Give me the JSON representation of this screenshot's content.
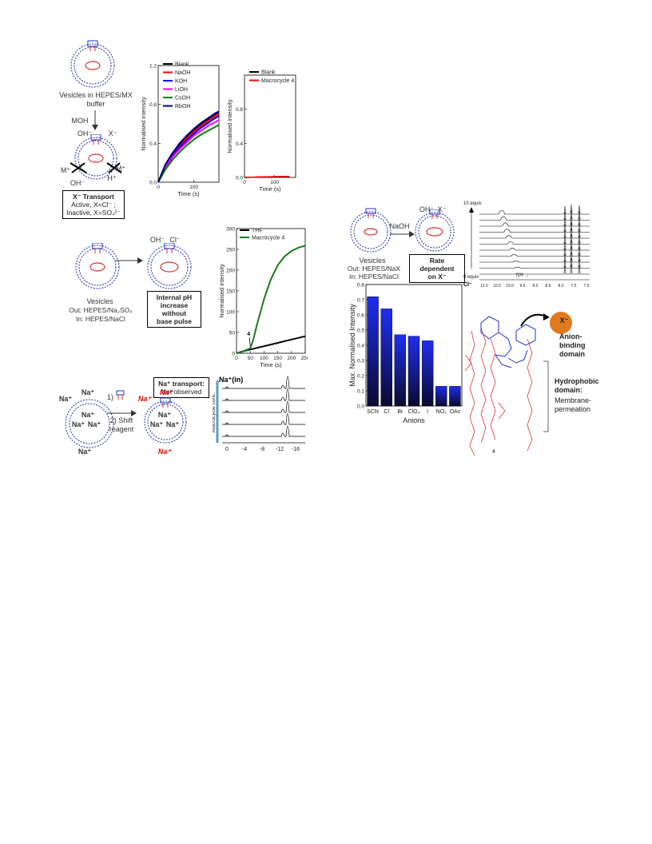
{
  "panelA": {
    "vesicles_label": "Vesicles in HEPES/MX buffer",
    "moh_label": "MOH",
    "oh_label": "OH⁻",
    "x_label": "X⁻",
    "m_left": "M⁺",
    "m_right": "M⁺",
    "h_label": "H⁺",
    "oh_bottom": "OH⁻",
    "box_title": "X⁻ Transport",
    "box_line1": "Active, X=Cl⁻ ;",
    "box_line2": "Inactive, X=SO₄²⁻"
  },
  "panelB": {
    "oh_label": "OH⁻",
    "cl_label": "Cl⁻",
    "vesicles_label": "Vesicles",
    "out_label": "Out: HEPES/Na₂SO₄",
    "in_label": "In: HEPES/NaCl",
    "box_line1": "Internal pH",
    "box_line2": "increase without",
    "box_line3": "base pulse"
  },
  "panelC": {
    "box_line1": "Na⁺ transport:",
    "box_line2": "Not observed",
    "na_out": "Na⁺",
    "na_in": "Na⁺",
    "step1": "1)",
    "step2": "2) Shift",
    "step2b": "reagent",
    "na_red": "Na⁺",
    "spec_title": "Na⁺(in)",
    "spec_ylabel": "Macrocycle conc.",
    "spec_ticks": [
      "0",
      "-4",
      "-8",
      "-12",
      "-16"
    ]
  },
  "panelD": {
    "naoh_label": "NaOH",
    "oh_label": "OH⁻",
    "x_label": "X⁻",
    "vesicles_label": "Vesicles",
    "out_label": "Out: HEPES/NaX",
    "in_label": "In: HEPES/NaCl",
    "box_line1": "Rate dependent",
    "box_line2": "on X⁻",
    "nmr_top": "10 equiv",
    "nmr_bottom": "0 equiv",
    "nmr_nh": "NH",
    "nmr_cl": "Cl⁻",
    "nmr_ticks": [
      "11.0",
      "10.5",
      "10.0",
      "9.5",
      "9.0",
      "8.5",
      "8.0",
      "7.5",
      "7.0"
    ]
  },
  "molecule": {
    "anion_label": "X⁻",
    "binding_domain": "Anion-binding domain",
    "hydrophobic_title": "Hydrophobic domain:",
    "hydrophobic_desc": "Membrane-permeation",
    "compound_number": "4"
  },
  "chart_data": [
    {
      "type": "line",
      "ylabel": "Normalised intensity",
      "xlabel": "Time (s)",
      "xlim": [
        0,
        170
      ],
      "ylim": [
        0,
        1.2
      ],
      "yticks": [
        "0.0",
        "0.4",
        "0.8",
        "1.2"
      ],
      "xticks": [
        "0",
        "100"
      ],
      "legend": "top-left",
      "series": [
        {
          "name": "Blank",
          "color": "#000000",
          "x": [
            0,
            20,
            40,
            60,
            80,
            100,
            120,
            140,
            160,
            170
          ],
          "y": [
            0,
            0.18,
            0.3,
            0.39,
            0.47,
            0.54,
            0.6,
            0.65,
            0.7,
            0.72
          ]
        },
        {
          "name": "NaOH",
          "color": "#ff0000",
          "x": [
            0,
            20,
            40,
            60,
            80,
            100,
            120,
            140,
            160,
            170
          ],
          "y": [
            0,
            0.17,
            0.28,
            0.37,
            0.45,
            0.52,
            0.58,
            0.63,
            0.68,
            0.7
          ]
        },
        {
          "name": "KOH",
          "color": "#0000ff",
          "x": [
            0,
            20,
            40,
            60,
            80,
            100,
            120,
            140,
            160,
            170
          ],
          "y": [
            0,
            0.16,
            0.27,
            0.36,
            0.43,
            0.5,
            0.56,
            0.61,
            0.66,
            0.68
          ]
        },
        {
          "name": "LiOH",
          "color": "#ff00ff",
          "x": [
            0,
            20,
            40,
            60,
            80,
            100,
            120,
            140,
            160,
            170
          ],
          "y": [
            0,
            0.15,
            0.26,
            0.34,
            0.41,
            0.48,
            0.53,
            0.58,
            0.62,
            0.64
          ]
        },
        {
          "name": "CsOH",
          "color": "#008000",
          "x": [
            0,
            20,
            40,
            60,
            80,
            100,
            120,
            140,
            160,
            170
          ],
          "y": [
            0,
            0.13,
            0.23,
            0.31,
            0.38,
            0.44,
            0.49,
            0.53,
            0.57,
            0.59
          ]
        },
        {
          "name": "RbOH",
          "color": "#000080",
          "x": [
            0,
            20,
            40,
            60,
            80,
            100,
            120,
            140,
            160,
            170
          ],
          "y": [
            0,
            0.18,
            0.3,
            0.4,
            0.48,
            0.55,
            0.61,
            0.66,
            0.71,
            0.73
          ]
        }
      ]
    },
    {
      "type": "line",
      "ylabel": "Normalised intensity",
      "xlabel": "Time (s)",
      "xlim": [
        0,
        170
      ],
      "ylim": [
        0,
        1.2
      ],
      "yticks": [
        "0.0",
        "0.4",
        "0.8"
      ],
      "xticks": [
        "0",
        "100"
      ],
      "legend": "top-left",
      "series": [
        {
          "name": "Blank",
          "color": "#000000",
          "x": [
            0,
            50,
            100,
            150
          ],
          "y": [
            0,
            0.005,
            0.008,
            0.01
          ]
        },
        {
          "name": "Macrocycle 4",
          "color": "#ff0000",
          "x": [
            0,
            50,
            100,
            150
          ],
          "y": [
            0,
            0.006,
            0.009,
            0.011
          ]
        }
      ]
    },
    {
      "type": "line",
      "ylabel": "Normalised intensity",
      "xlabel": "Time (s)",
      "xlim": [
        0,
        250
      ],
      "ylim": [
        0,
        300
      ],
      "yticks": [
        "0",
        "50",
        "100",
        "150",
        "200",
        "250",
        "300"
      ],
      "xticks": [
        "0",
        "50",
        "100",
        "150",
        "200",
        "250"
      ],
      "legend": "top-left",
      "annotation": "4",
      "series": [
        {
          "name": "THF",
          "color": "#000000",
          "x": [
            0,
            25,
            50,
            75,
            100,
            125,
            150,
            175,
            200,
            225,
            250
          ],
          "y": [
            0,
            5,
            9,
            13,
            17,
            21,
            25,
            29,
            33,
            37,
            41
          ]
        },
        {
          "name": "Macrocycle 4",
          "color": "#1a7a1a",
          "x": [
            0,
            25,
            50,
            60,
            75,
            100,
            125,
            150,
            175,
            200,
            225,
            250
          ],
          "y": [
            0,
            5,
            12,
            30,
            70,
            130,
            178,
            212,
            233,
            246,
            254,
            259
          ]
        }
      ]
    },
    {
      "type": "bar",
      "ylabel": "Max. Normalised Intensity",
      "xlabel": "Anions",
      "ylim": [
        0,
        0.8
      ],
      "yticks": [
        "0.0",
        "0.1",
        "0.2",
        "0.3",
        "0.4",
        "0.5",
        "0.6",
        "0.7",
        "0.8"
      ],
      "categories": [
        "SCN",
        "Cl",
        "Br",
        "ClO₄",
        "I",
        "NO₂",
        "OAc"
      ],
      "values": [
        0.72,
        0.64,
        0.47,
        0.46,
        0.43,
        0.13,
        0.13
      ]
    }
  ]
}
